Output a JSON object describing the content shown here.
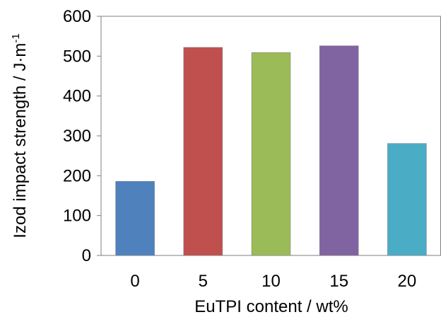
{
  "chart_data": {
    "type": "bar",
    "title": "",
    "xlabel": "EuTPI content / wt%",
    "ylabel": "Izod impact strength / J·m",
    "ylabel_superscript": "-1",
    "categories": [
      "0",
      "5",
      "10",
      "15",
      "20"
    ],
    "values": [
      186,
      522,
      509,
      526,
      281
    ],
    "ylim": [
      0,
      600
    ],
    "yticks": [
      "0",
      "100",
      "200",
      "300",
      "400",
      "500",
      "600"
    ],
    "grid": false,
    "legend": "none",
    "bar_colors": [
      "#4f81bd",
      "#c0504d",
      "#9bbb59",
      "#8064a2",
      "#4bacc6"
    ]
  }
}
